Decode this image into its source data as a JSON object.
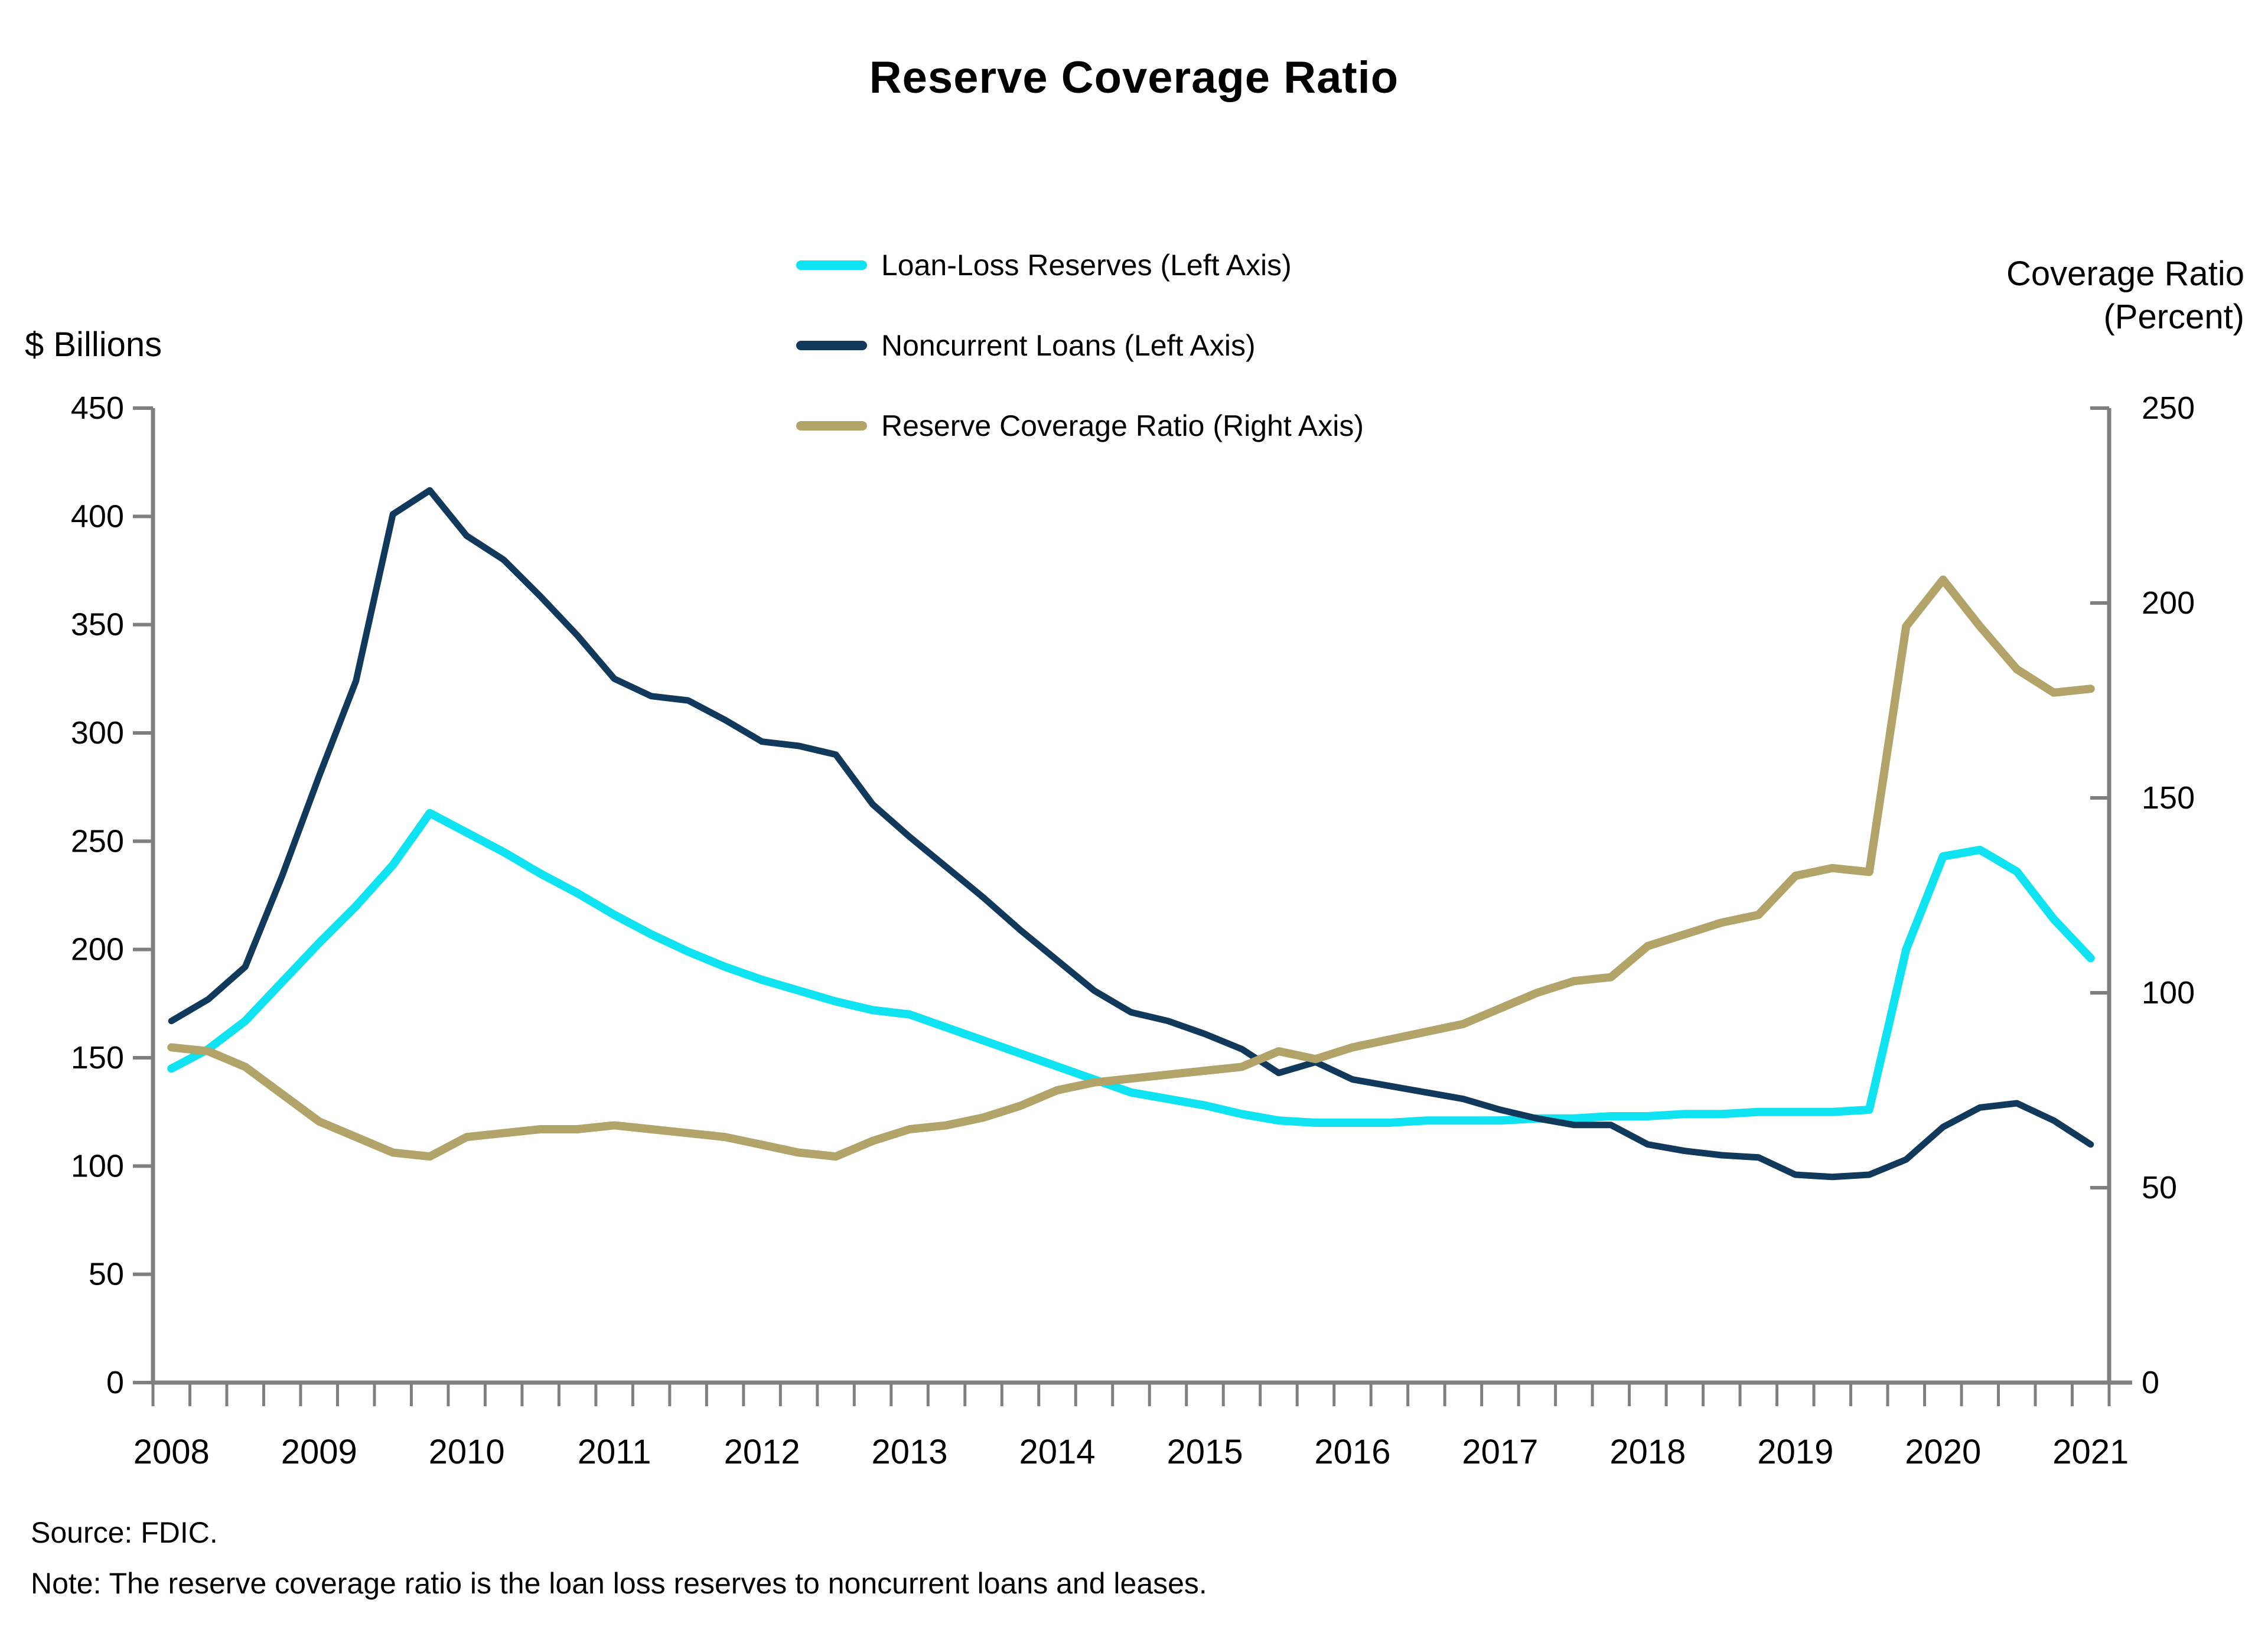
{
  "page_title": "Reserve Coverage Ratio",
  "footer": {
    "source": "Source: FDIC.",
    "note": "Note: The reserve coverage ratio is the loan loss reserves to noncurrent loans and leases."
  },
  "colors": {
    "axis_gray": "#7f7f7f",
    "cyan": "#0fe3f2",
    "navy": "#11395b",
    "khaki": "#b2a369"
  },
  "chart_data": {
    "type": "line",
    "title": "Reserve Coverage Ratio",
    "frequency": "quarterly",
    "start_period": "2008Q1",
    "end_period": "2021Q1",
    "years": [
      "2008",
      "2009",
      "2010",
      "2011",
      "2012",
      "2013",
      "2014",
      "2015",
      "2016",
      "2017",
      "2018",
      "2019",
      "2020",
      "2021"
    ],
    "left_axis": {
      "label": "$ Billions",
      "min": 0,
      "max": 450,
      "step": 50
    },
    "right_axis": {
      "label_line1": "Coverage Ratio",
      "label_line2": "(Percent)",
      "min": 0,
      "max": 250,
      "step": 50
    },
    "grid": false,
    "legend_position": "top-center",
    "series": [
      {
        "name": "Loan-Loss Reserves (Left Axis)",
        "axis": "left",
        "color": "#0fe3f2",
        "stroke_width": 14,
        "values": [
          145,
          154,
          167,
          185,
          203,
          220,
          239,
          263,
          254,
          245,
          235,
          226,
          216,
          207,
          199,
          192,
          186,
          181,
          176,
          172,
          170,
          164,
          158,
          152,
          146,
          140,
          134,
          131,
          128,
          124,
          121,
          120,
          120,
          120,
          121,
          121,
          121,
          122,
          122,
          123,
          123,
          124,
          124,
          125,
          125,
          125,
          126,
          200,
          243,
          246,
          236,
          214,
          196
        ]
      },
      {
        "name": "Noncurrent Loans (Left Axis)",
        "axis": "left",
        "color": "#11395b",
        "stroke_width": 11,
        "values": [
          167,
          177,
          192,
          234,
          280,
          324,
          401,
          412,
          391,
          380,
          363,
          345,
          325,
          317,
          315,
          306,
          296,
          294,
          290,
          267,
          252,
          238,
          224,
          209,
          195,
          181,
          171,
          167,
          161,
          154,
          143,
          148,
          140,
          137,
          134,
          131,
          126,
          122,
          119,
          119,
          110,
          107,
          105,
          104,
          96,
          95,
          96,
          103,
          118,
          127,
          129,
          121,
          110
        ]
      },
      {
        "name": "Reserve Coverage Ratio (Right Axis)",
        "axis": "right",
        "color": "#b2a369",
        "stroke_width": 14,
        "values": [
          86,
          85,
          81,
          74,
          67,
          63,
          59,
          58,
          63,
          64,
          65,
          65,
          66,
          65,
          64,
          63,
          61,
          59,
          58,
          62,
          65,
          66,
          68,
          71,
          75,
          77,
          78,
          79,
          80,
          81,
          85,
          83,
          86,
          88,
          90,
          92,
          96,
          100,
          103,
          104,
          112,
          115,
          118,
          120,
          130,
          132,
          131,
          194,
          206,
          194,
          183,
          177,
          178
        ]
      }
    ]
  }
}
